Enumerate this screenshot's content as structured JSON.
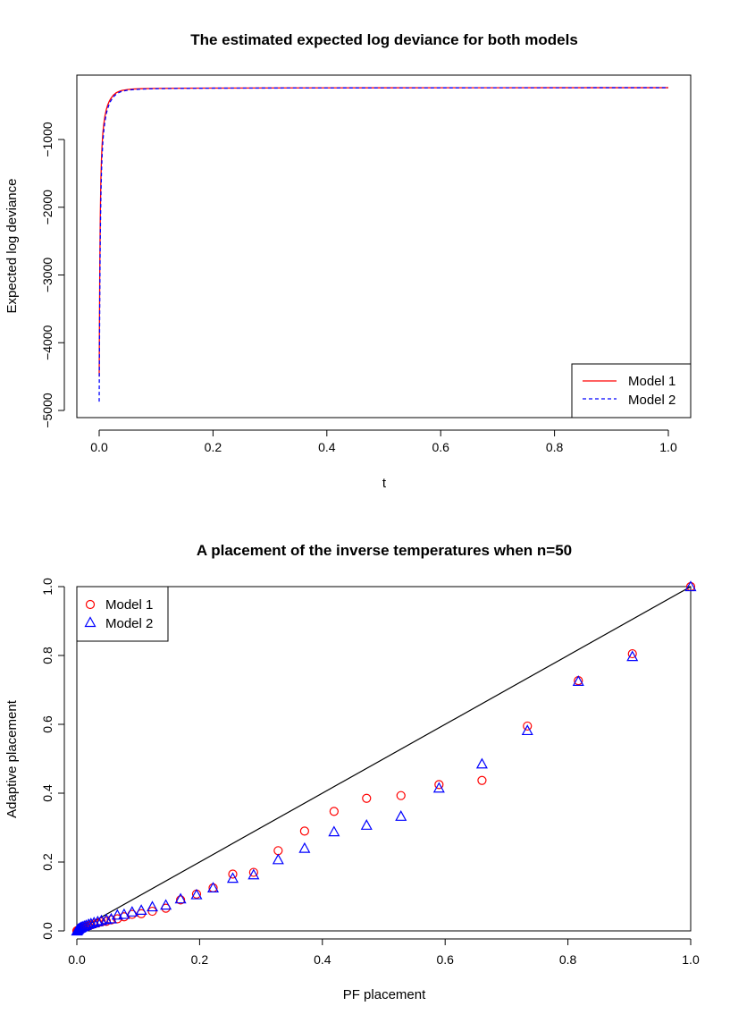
{
  "chart_data": [
    {
      "type": "line",
      "title": "The estimated expected log deviance for both models",
      "xlabel": "t",
      "ylabel": "Expected log deviance",
      "xlim": [
        0,
        1
      ],
      "ylim": [
        -5150,
        -80
      ],
      "xticks": [
        0,
        0.2,
        0.4,
        0.6,
        0.8,
        1
      ],
      "xtick_labels": [
        "0.0",
        "0.2",
        "0.4",
        "0.6",
        "0.8",
        "1.0"
      ],
      "yticks": [
        -5000,
        -4000,
        -3000,
        -2000,
        -1000
      ],
      "ytick_labels": [
        "−5000",
        "−4000",
        "−3000",
        "−2000",
        "−1000"
      ],
      "legend_position": "bottom-right",
      "series": [
        {
          "name": "Model 1",
          "color": "#ff0000",
          "dash": "solid",
          "x": [
            0,
            0.0005,
            0.001,
            0.0015,
            0.002,
            0.003,
            0.004,
            0.005,
            0.0065,
            0.008,
            0.01,
            0.0125,
            0.015,
            0.0175,
            0.02,
            0.025,
            0.03,
            0.035,
            0.04,
            0.05,
            0.06,
            0.075,
            0.1,
            0.15,
            0.2,
            0.3,
            0.4,
            0.5,
            0.6,
            0.7,
            0.8,
            0.9,
            1.0
          ],
          "y": [
            -4500,
            -3700,
            -3000,
            -2500,
            -2100,
            -1600,
            -1300,
            -1100,
            -900,
            -780,
            -660,
            -560,
            -490,
            -440,
            -400,
            -345,
            -310,
            -290,
            -275,
            -262,
            -255,
            -250,
            -246,
            -243,
            -241,
            -239,
            -238,
            -237,
            -236,
            -236,
            -235,
            -235,
            -235
          ]
        },
        {
          "name": "Model 2",
          "color": "#0000ff",
          "dash": "dashed",
          "x": [
            0,
            0.0005,
            0.001,
            0.0015,
            0.002,
            0.003,
            0.004,
            0.005,
            0.0065,
            0.008,
            0.01,
            0.0125,
            0.015,
            0.0175,
            0.02,
            0.025,
            0.03,
            0.035,
            0.04,
            0.05,
            0.06,
            0.075,
            0.1,
            0.15,
            0.2,
            0.3,
            0.4,
            0.5,
            0.6,
            0.7,
            0.8,
            0.9,
            1.0
          ],
          "y": [
            -4870,
            -4100,
            -3400,
            -2850,
            -2400,
            -1850,
            -1500,
            -1260,
            -1030,
            -880,
            -740,
            -620,
            -540,
            -480,
            -435,
            -370,
            -330,
            -305,
            -288,
            -272,
            -263,
            -256,
            -250,
            -245,
            -242,
            -240,
            -239,
            -238,
            -237,
            -236,
            -236,
            -235,
            -235
          ]
        }
      ]
    },
    {
      "type": "scatter",
      "title": "A placement of the inverse temperatures when n=50",
      "xlabel": "PF placement",
      "ylabel": "Adaptive placement",
      "xlim": [
        0,
        1
      ],
      "ylim": [
        0,
        1
      ],
      "xticks": [
        0,
        0.2,
        0.4,
        0.6,
        0.8,
        1
      ],
      "xtick_labels": [
        "0.0",
        "0.2",
        "0.4",
        "0.6",
        "0.8",
        "1.0"
      ],
      "yticks": [
        0,
        0.2,
        0.4,
        0.6,
        0.8,
        1
      ],
      "ytick_labels": [
        "0.0",
        "0.2",
        "0.4",
        "0.6",
        "0.8",
        "1.0"
      ],
      "legend_position": "top-left",
      "reference_line": {
        "x": [
          0,
          1
        ],
        "y": [
          0,
          1
        ],
        "color": "#000000"
      },
      "series": [
        {
          "name": "Model 1",
          "color": "#ff0000",
          "marker": "circle",
          "x": [
            0.0,
            0.001,
            0.002,
            0.003,
            0.005,
            0.007,
            0.009,
            0.012,
            0.015,
            0.019,
            0.023,
            0.028,
            0.034,
            0.04,
            0.048,
            0.056,
            0.066,
            0.077,
            0.09,
            0.105,
            0.123,
            0.145,
            0.169,
            0.195,
            0.222,
            0.254,
            0.288,
            0.328,
            0.371,
            0.419,
            0.472,
            0.528,
            0.59,
            0.66,
            0.734,
            0.817,
            0.905,
            1.0
          ],
          "y": [
            0.0,
            0.001,
            0.002,
            0.003,
            0.005,
            0.006,
            0.008,
            0.01,
            0.012,
            0.015,
            0.017,
            0.02,
            0.023,
            0.026,
            0.028,
            0.032,
            0.035,
            0.041,
            0.048,
            0.05,
            0.057,
            0.066,
            0.09,
            0.107,
            0.125,
            0.165,
            0.17,
            0.233,
            0.29,
            0.347,
            0.385,
            0.393,
            0.425,
            0.437,
            0.595,
            0.727,
            0.805,
            1.0
          ]
        },
        {
          "name": "Model 2",
          "color": "#0000ff",
          "marker": "triangle",
          "x": [
            0.0,
            0.001,
            0.002,
            0.003,
            0.005,
            0.007,
            0.009,
            0.012,
            0.015,
            0.019,
            0.023,
            0.028,
            0.034,
            0.04,
            0.048,
            0.056,
            0.066,
            0.077,
            0.09,
            0.105,
            0.123,
            0.145,
            0.169,
            0.195,
            0.222,
            0.254,
            0.288,
            0.328,
            0.371,
            0.419,
            0.472,
            0.528,
            0.59,
            0.66,
            0.734,
            0.817,
            0.905,
            1.0
          ],
          "y": [
            0.0,
            0.002,
            0.004,
            0.006,
            0.008,
            0.01,
            0.012,
            0.014,
            0.016,
            0.019,
            0.021,
            0.024,
            0.027,
            0.03,
            0.033,
            0.035,
            0.046,
            0.048,
            0.055,
            0.06,
            0.07,
            0.075,
            0.093,
            0.105,
            0.125,
            0.153,
            0.163,
            0.207,
            0.24,
            0.288,
            0.307,
            0.333,
            0.415,
            0.485,
            0.582,
            0.725,
            0.797,
            1.0
          ]
        }
      ]
    }
  ]
}
